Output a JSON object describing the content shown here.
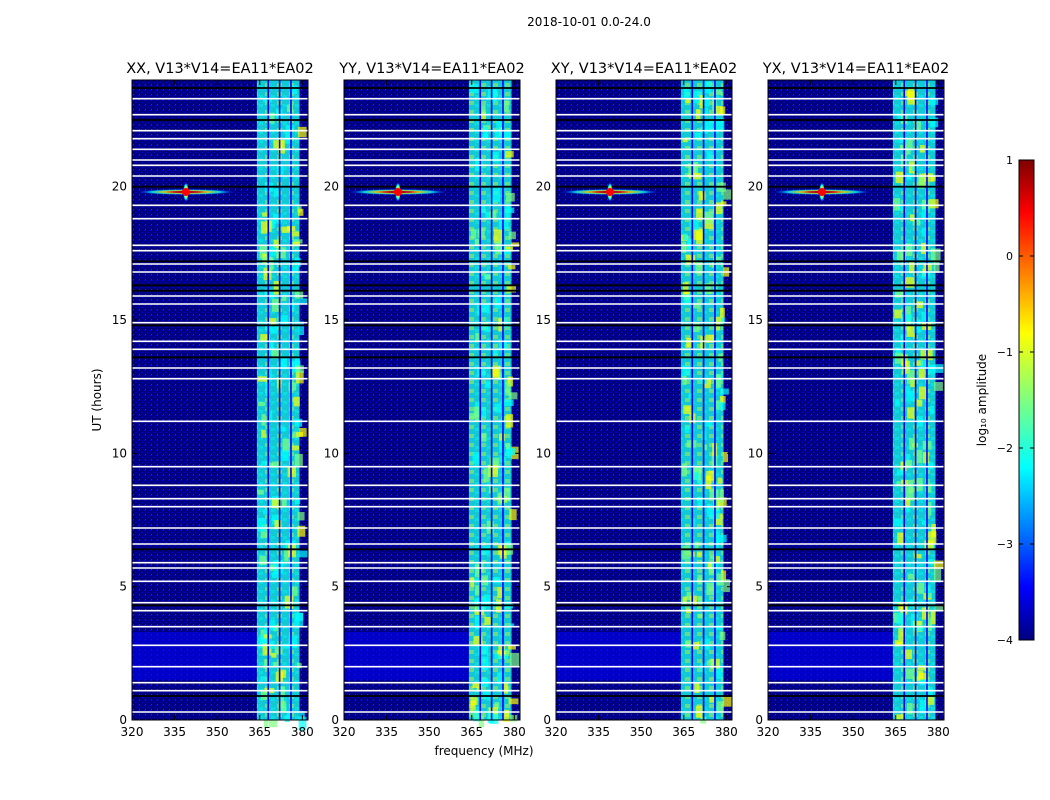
{
  "figure_title": "2018-10-01 0.0-24.0",
  "chart_data": [
    {
      "type": "heatmap",
      "title": "XX, V13*V14=EA11*EA02",
      "xlabel": "frequency (MHz)",
      "ylabel": "UT (hours)",
      "xlim": [
        320,
        382
      ],
      "ylim": [
        0,
        24
      ],
      "xticks": [
        320,
        335,
        350,
        365,
        380
      ],
      "yticks": [
        0,
        5,
        10,
        15,
        20
      ],
      "band_mhz": [
        364,
        379
      ],
      "source_peak": {
        "freq_mhz": 339,
        "ut_hours": 19.8,
        "log10_amplitude": 0.6
      }
    },
    {
      "type": "heatmap",
      "title": "YY, V13*V14=EA11*EA02",
      "xlabel": "frequency (MHz)",
      "ylabel": "UT (hours)",
      "xlim": [
        320,
        382
      ],
      "ylim": [
        0,
        24
      ],
      "xticks": [
        320,
        335,
        350,
        365,
        380
      ],
      "yticks": [
        0,
        5,
        10,
        15,
        20
      ],
      "band_mhz": [
        364,
        379
      ],
      "source_peak": {
        "freq_mhz": 339,
        "ut_hours": 19.8,
        "log10_amplitude": 0.6
      }
    },
    {
      "type": "heatmap",
      "title": "XY, V13*V14=EA11*EA02",
      "xlabel": "frequency (MHz)",
      "ylabel": "UT (hours)",
      "xlim": [
        320,
        382
      ],
      "ylim": [
        0,
        24
      ],
      "xticks": [
        320,
        335,
        350,
        365,
        380
      ],
      "yticks": [
        0,
        5,
        10,
        15,
        20
      ],
      "band_mhz": [
        364,
        379
      ],
      "source_peak": {
        "freq_mhz": 339,
        "ut_hours": 19.8,
        "log10_amplitude": 0.3
      }
    },
    {
      "type": "heatmap",
      "title": "YX, V13*V14=EA11*EA02",
      "xlabel": "frequency (MHz)",
      "ylabel": "UT (hours)",
      "xlim": [
        320,
        382
      ],
      "ylim": [
        0,
        24
      ],
      "xticks": [
        320,
        335,
        350,
        365,
        380
      ],
      "yticks": [
        0,
        5,
        10,
        15,
        20
      ],
      "band_mhz": [
        364,
        379
      ],
      "source_peak": {
        "freq_mhz": 339,
        "ut_hours": 19.8,
        "log10_amplitude": 0.6
      }
    }
  ],
  "colorbar": {
    "label": "log₁₀ amplitude",
    "range": [
      -4,
      1
    ],
    "ticks": [
      1,
      0,
      -1,
      -2,
      -3,
      -4
    ],
    "tick_labels": [
      "1",
      "0",
      "−1",
      "−2",
      "−3",
      "−4"
    ],
    "colormap": "jet"
  },
  "colors": {
    "background": "#00007f",
    "jet": [
      "#00007f",
      "#0000ff",
      "#007fff",
      "#00ffff",
      "#7fff7f",
      "#ffff00",
      "#ff7f00",
      "#ff0000",
      "#7f0000"
    ]
  }
}
